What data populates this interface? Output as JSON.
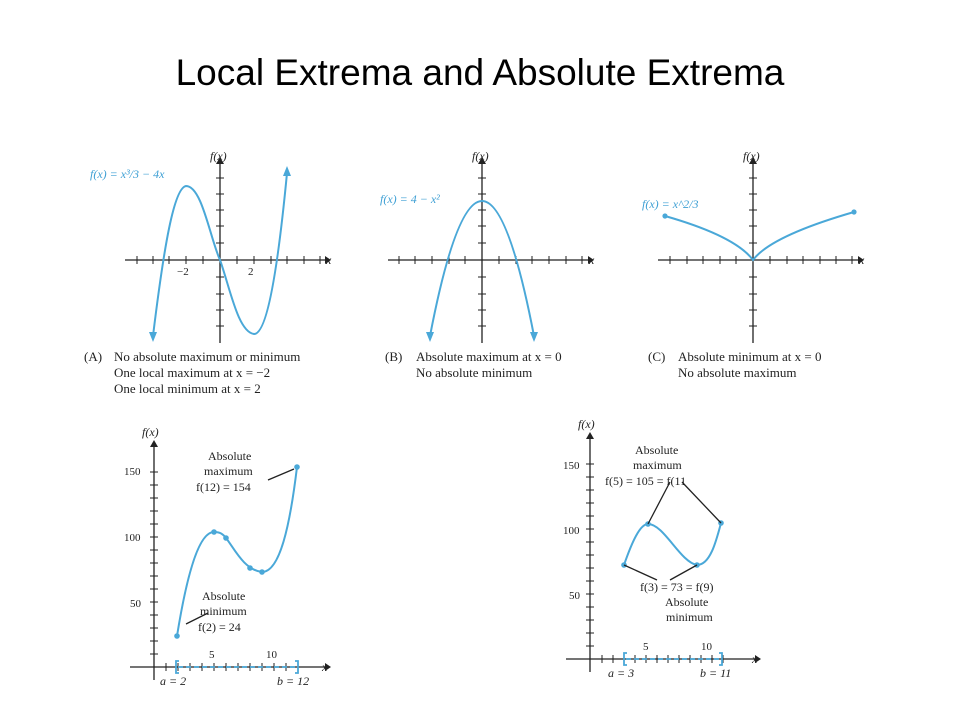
{
  "title": "Local Extrema and Absolute Extrema",
  "accent_color": "#4aa8d8",
  "panel_a": {
    "function_label": "f(x) = x³/3 − 4x",
    "y_axis_label": "f(x)",
    "x_axis_label": "x",
    "tick_labels": [
      "−2",
      "2"
    ],
    "caption_letter": "(A)",
    "caption_lines": [
      "No absolute maximum or minimum",
      "One local maximum at x = −2",
      "One local minimum at x = 2"
    ]
  },
  "panel_b": {
    "function_label": "f(x) = 4 − x²",
    "y_axis_label": "f(x)",
    "x_axis_label": "x",
    "caption_letter": "(B)",
    "caption_lines": [
      "Absolute maximum at x = 0",
      "No absolute minimum"
    ]
  },
  "panel_c": {
    "function_label": "f(x) = x^2/3",
    "y_axis_label": "f(x)",
    "x_axis_label": "x",
    "caption_letter": "(C)",
    "caption_lines": [
      "Absolute minimum at x = 0",
      "No absolute maximum"
    ]
  },
  "panel_d": {
    "y_axis_label": "f(x)",
    "x_axis_label": "x",
    "y_ticks": [
      "150",
      "100",
      "50"
    ],
    "x_ticks": [
      "5",
      "10"
    ],
    "endpoint_left": "a = 2",
    "endpoint_right": "b = 12",
    "max_annotation": [
      "Absolute",
      "maximum",
      "f(12) = 154"
    ],
    "min_annotation": [
      "Absolute",
      "minimum",
      "f(2) = 24"
    ]
  },
  "panel_e": {
    "y_axis_label": "f(x)",
    "x_axis_label": "x",
    "y_ticks": [
      "150",
      "100",
      "50"
    ],
    "x_ticks": [
      "5",
      "10"
    ],
    "endpoint_left": "a = 3",
    "endpoint_right": "b = 11",
    "max_annotation": [
      "Absolute",
      "maximum",
      "f(5) = 105 = f(11"
    ],
    "min_annotation": [
      "f(3) = 73 = f(9)",
      "Absolute",
      "minimum"
    ]
  }
}
